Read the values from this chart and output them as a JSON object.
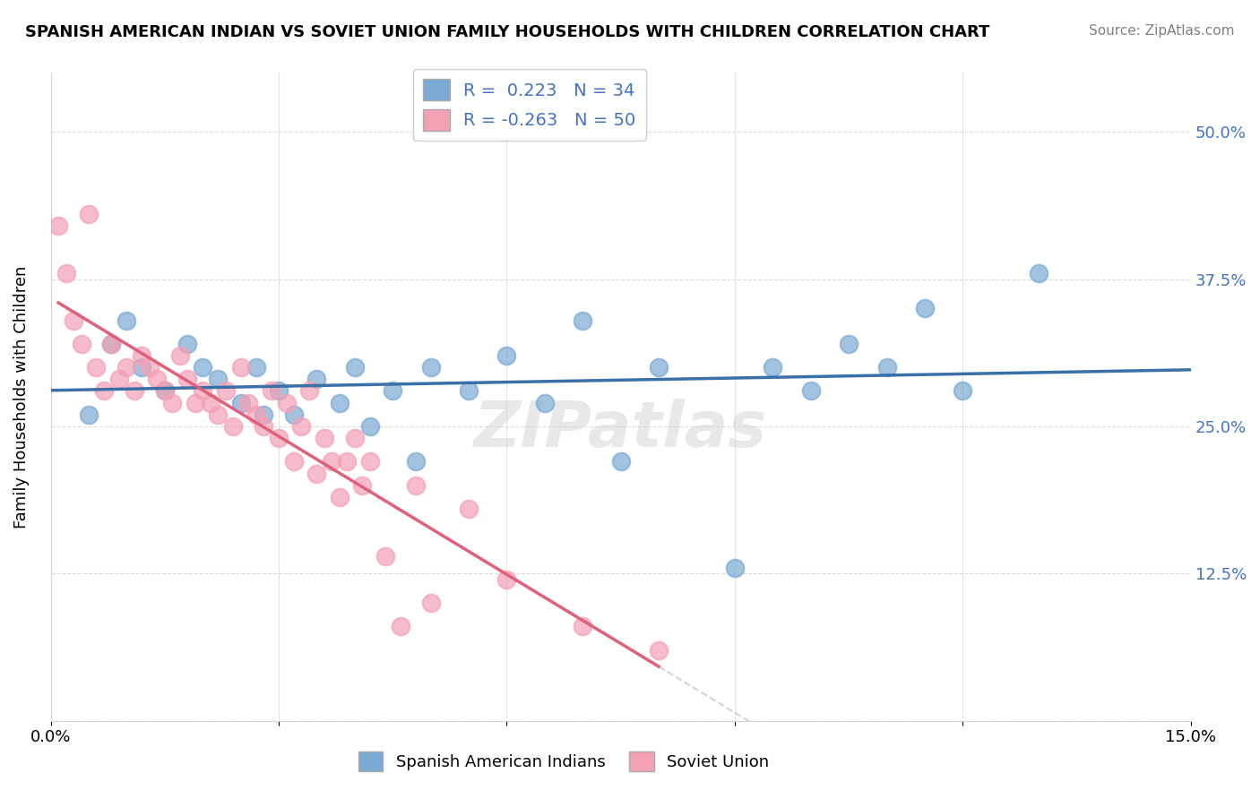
{
  "title": "SPANISH AMERICAN INDIAN VS SOVIET UNION FAMILY HOUSEHOLDS WITH CHILDREN CORRELATION CHART",
  "source": "Source: ZipAtlas.com",
  "xlabel": "",
  "ylabel": "Family Households with Children",
  "xlim": [
    0.0,
    0.15
  ],
  "ylim": [
    0.0,
    0.55
  ],
  "xticks": [
    0.0,
    0.03,
    0.06,
    0.09,
    0.12,
    0.15
  ],
  "xtick_labels": [
    "0.0%",
    "",
    "",
    "",
    "",
    "15.0%"
  ],
  "ytick_labels": [
    "",
    "12.5%",
    "25.0%",
    "37.5%",
    "50.0%"
  ],
  "yticks": [
    0.0,
    0.125,
    0.25,
    0.375,
    0.5
  ],
  "blue_R": 0.223,
  "blue_N": 34,
  "pink_R": -0.263,
  "pink_N": 50,
  "blue_color": "#7aaad4",
  "pink_color": "#f4a0b5",
  "blue_line_color": "#3a6fa8",
  "pink_line_color": "#e0607a",
  "legend_label_blue": "Spanish American Indians",
  "legend_label_pink": "Soviet Union",
  "watermark": "ZIPatlas",
  "blue_x": [
    0.005,
    0.008,
    0.01,
    0.012,
    0.015,
    0.018,
    0.02,
    0.022,
    0.025,
    0.027,
    0.028,
    0.03,
    0.032,
    0.035,
    0.038,
    0.04,
    0.042,
    0.045,
    0.048,
    0.05,
    0.055,
    0.06,
    0.065,
    0.07,
    0.075,
    0.08,
    0.09,
    0.095,
    0.1,
    0.105,
    0.11,
    0.115,
    0.12,
    0.13
  ],
  "blue_y": [
    0.26,
    0.32,
    0.34,
    0.3,
    0.28,
    0.32,
    0.3,
    0.29,
    0.27,
    0.3,
    0.26,
    0.28,
    0.26,
    0.29,
    0.27,
    0.3,
    0.25,
    0.28,
    0.22,
    0.3,
    0.28,
    0.31,
    0.27,
    0.34,
    0.22,
    0.3,
    0.13,
    0.3,
    0.28,
    0.32,
    0.3,
    0.35,
    0.28,
    0.38
  ],
  "pink_x": [
    0.001,
    0.002,
    0.003,
    0.004,
    0.005,
    0.006,
    0.007,
    0.008,
    0.009,
    0.01,
    0.011,
    0.012,
    0.013,
    0.014,
    0.015,
    0.016,
    0.017,
    0.018,
    0.019,
    0.02,
    0.021,
    0.022,
    0.023,
    0.024,
    0.025,
    0.026,
    0.027,
    0.028,
    0.029,
    0.03,
    0.031,
    0.032,
    0.033,
    0.034,
    0.035,
    0.036,
    0.037,
    0.038,
    0.039,
    0.04,
    0.041,
    0.042,
    0.044,
    0.046,
    0.048,
    0.05,
    0.055,
    0.06,
    0.07,
    0.08
  ],
  "pink_y": [
    0.42,
    0.38,
    0.34,
    0.32,
    0.43,
    0.3,
    0.28,
    0.32,
    0.29,
    0.3,
    0.28,
    0.31,
    0.3,
    0.29,
    0.28,
    0.27,
    0.31,
    0.29,
    0.27,
    0.28,
    0.27,
    0.26,
    0.28,
    0.25,
    0.3,
    0.27,
    0.26,
    0.25,
    0.28,
    0.24,
    0.27,
    0.22,
    0.25,
    0.28,
    0.21,
    0.24,
    0.22,
    0.19,
    0.22,
    0.24,
    0.2,
    0.22,
    0.14,
    0.08,
    0.2,
    0.1,
    0.18,
    0.12,
    0.08,
    0.06
  ]
}
